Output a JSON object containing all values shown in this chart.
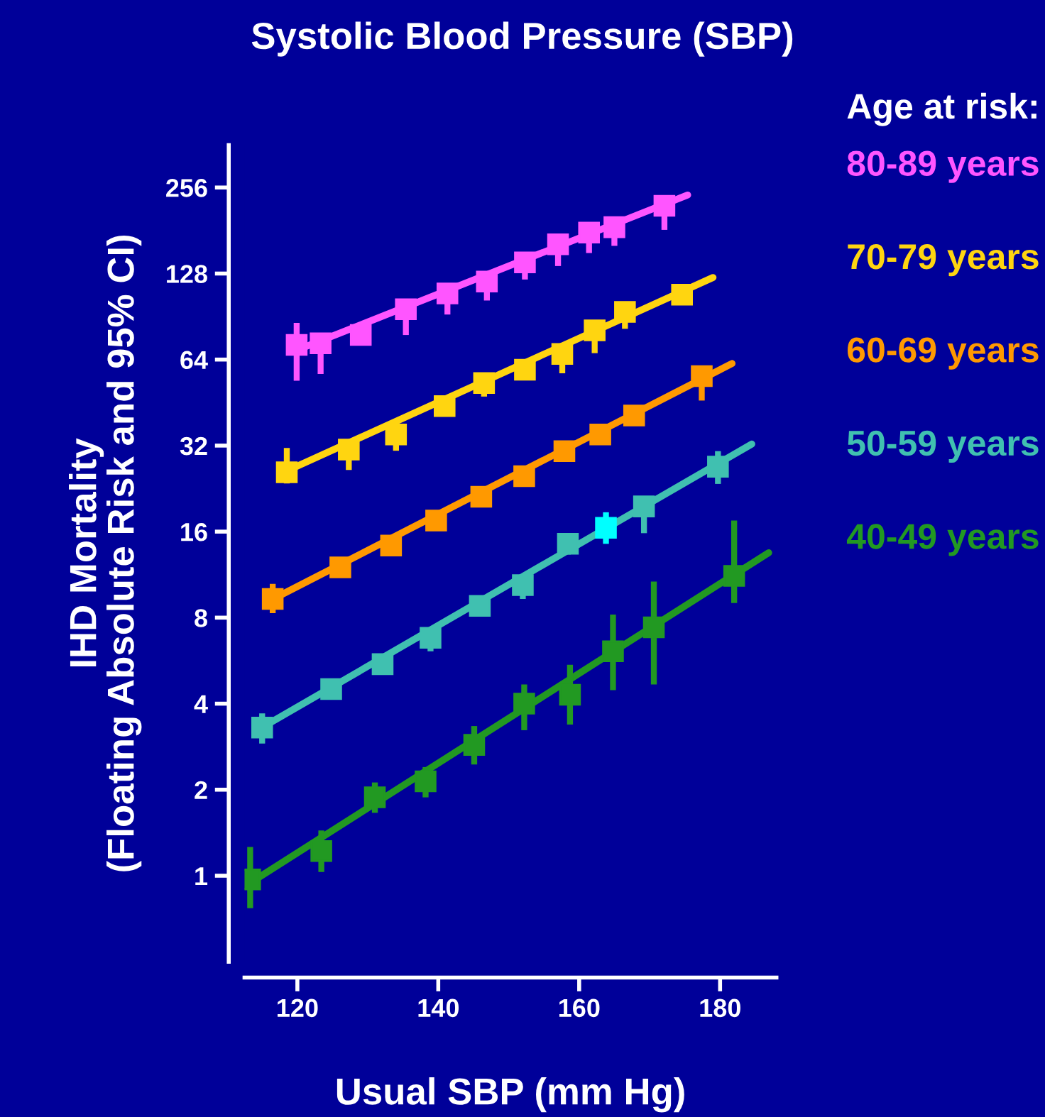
{
  "chart_data": {
    "type": "scatter",
    "title": "Systolic Blood Pressure (SBP)",
    "xlabel": "Usual SBP (mm Hg)",
    "ylabel": "IHD Mortality\n(Floating Absolute Risk and 95% CI)",
    "legend_title": "Age at risk:",
    "legend": "right",
    "log": "y",
    "xlim": [
      112.5,
      188
    ],
    "xticks": [
      120,
      140,
      160,
      180
    ],
    "ylim": [
      0.5,
      360
    ],
    "yticks": [
      1,
      2,
      4,
      8,
      16,
      32,
      64,
      128,
      256
    ],
    "series": [
      {
        "name": "80-89 years",
        "marker": "square",
        "color": "#ff55ff",
        "x": [
          119.9,
          123.3,
          129,
          135.4,
          141.3,
          146.9,
          152.3,
          157.0,
          161.4,
          165.0,
          172.1
        ],
        "values": [
          72,
          73,
          78,
          96,
          109,
          120,
          140,
          162,
          178,
          186,
          221
        ],
        "errors": [
          [
            54,
            86
          ],
          [
            57,
            79
          ],
          null,
          [
            78,
            96
          ],
          [
            92,
            116
          ],
          [
            103,
            130
          ],
          [
            122,
            151
          ],
          [
            136,
            172
          ],
          [
            151,
            190
          ],
          [
            160,
            186
          ],
          [
            182,
            238
          ]
        ]
      },
      {
        "type": "line",
        "color": "#ff55ff",
        "x": [
          119.9,
          175.4
        ],
        "values": [
          69,
          241
        ]
      },
      {
        "name": "70-79 years",
        "marker": "square",
        "color": "#ffd510",
        "x": [
          118.5,
          127.3,
          134.0,
          140.9,
          146.5,
          152.3,
          157.6,
          162.2,
          166.5,
          174.6
        ],
        "values": [
          25.8,
          31,
          35,
          44,
          53,
          59,
          67,
          81,
          94,
          108
        ],
        "errors": [
          [
            23.6,
            31.4
          ],
          [
            26.3,
            33
          ],
          [
            30.7,
            35
          ],
          null,
          [
            47.5,
            57.3
          ],
          null,
          [
            57.3,
            72
          ],
          [
            67.4,
            87
          ],
          [
            82,
            101
          ],
          null
        ]
      },
      {
        "type": "line",
        "color": "#ffd510",
        "x": [
          118.2,
          179.0
        ],
        "values": [
          25.9,
          124
        ]
      },
      {
        "name": "60-69 years",
        "marker": "square",
        "color": "#ff9900",
        "x": [
          116.5,
          126.1,
          133.3,
          139.7,
          146.1,
          152.2,
          157.9,
          163.0,
          167.8,
          177.4
        ],
        "values": [
          9.3,
          12.0,
          14.3,
          17.5,
          21.2,
          25.0,
          30.6,
          35,
          40.8,
          56
        ],
        "errors": [
          [
            8.3,
            10.5
          ],
          null,
          null,
          null,
          null,
          null,
          null,
          [
            35,
            37
          ],
          [
            37.8,
            44
          ],
          [
            46,
            59.6
          ]
        ]
      },
      {
        "type": "line",
        "color": "#ff9900",
        "x": [
          115.8,
          181.7
        ],
        "values": [
          9.1,
          62
        ]
      },
      {
        "name": "50-59 years",
        "marker": "square",
        "color": "#40c0b0",
        "colors": [
          "#40c0b0",
          "#40c0b0",
          "#40c0b0",
          "#40c0b0",
          "#40c0b0",
          "#40c0b0",
          "#40c0b0",
          "#00ffff",
          "#40c0b0",
          "#40c0b0"
        ],
        "x": [
          115.0,
          124.8,
          132.1,
          138.9,
          145.9,
          152.0,
          158.4,
          163.8,
          169.2,
          179.7
        ],
        "values": [
          3.3,
          4.5,
          5.5,
          6.8,
          8.8,
          10.4,
          14.5,
          16.5,
          19.6,
          27
        ],
        "errors": [
          [
            2.9,
            3.7
          ],
          null,
          null,
          [
            6.1,
            6.8
          ],
          null,
          [
            9.3,
            11.2
          ],
          [
            13.3,
            15.8
          ],
          [
            14.5,
            18.7
          ],
          [
            15.8,
            21.3
          ],
          [
            23.5,
            30.6
          ]
        ]
      },
      {
        "type": "line",
        "color": "#40c0b0",
        "x": [
          114.5,
          184.5
        ],
        "values": [
          3.25,
          32.4
        ]
      },
      {
        "name": "40-49 years",
        "marker": "square",
        "color": "#229922",
        "x": [
          113.3,
          123.4,
          131.0,
          138.2,
          145.1,
          152.2,
          158.7,
          164.8,
          170.6,
          182.0
        ],
        "values": [
          0.97,
          1.22,
          1.88,
          2.14,
          2.87,
          4.0,
          4.3,
          6.1,
          7.4,
          11.2
        ],
        "errors": [
          [
            0.77,
            1.26
          ],
          [
            1.03,
            1.44
          ],
          [
            1.66,
            2.12
          ],
          [
            1.88,
            2.4
          ],
          [
            2.45,
            3.34
          ],
          [
            3.23,
            4.67
          ],
          [
            3.38,
            5.47
          ],
          [
            4.46,
            8.2
          ],
          [
            4.67,
            10.7
          ],
          [
            9.0,
            17.5
          ]
        ]
      },
      {
        "type": "line",
        "color": "#229922",
        "x": [
          113.5,
          186.9
        ],
        "values": [
          0.95,
          13.5
        ]
      }
    ]
  }
}
